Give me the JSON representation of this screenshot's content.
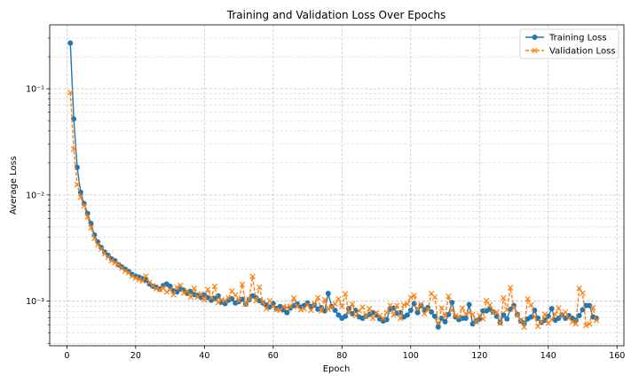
{
  "chart_data": {
    "type": "line",
    "title": "Training and Validation Loss Over Epochs",
    "xlabel": "Epoch",
    "ylabel": "Average Loss",
    "xlim": [
      -5,
      162
    ],
    "ylim": [
      0.00038,
      0.4
    ],
    "yscale": "log",
    "grid": true,
    "legend_position": "top-right",
    "x_ticks": [
      0,
      20,
      40,
      60,
      80,
      100,
      120,
      140,
      160
    ],
    "x_tick_labels": [
      "0",
      "20",
      "40",
      "60",
      "80",
      "100",
      "120",
      "140",
      "160"
    ],
    "y_ticks": [
      0.001,
      0.01,
      0.1
    ],
    "y_tick_labels": [
      "10⁻³",
      "10⁻²",
      "10⁻¹"
    ],
    "series": [
      {
        "name": "Training Loss",
        "color": "#1f77b4",
        "marker": "circle",
        "linestyle": "solid",
        "values": [
          0.27,
          0.052,
          0.0182,
          0.0106,
          0.0083,
          0.0067,
          0.0054,
          0.0042,
          0.0036,
          0.0032,
          0.0029,
          0.0027,
          0.0025,
          0.0024,
          0.0022,
          0.0021,
          0.002,
          0.0019,
          0.00178,
          0.00172,
          0.00168,
          0.00163,
          0.00158,
          0.00145,
          0.00138,
          0.00135,
          0.0013,
          0.0014,
          0.00145,
          0.00138,
          0.00125,
          0.00122,
          0.0013,
          0.00127,
          0.00118,
          0.00123,
          0.00115,
          0.00113,
          0.00108,
          0.00114,
          0.00108,
          0.00102,
          0.00106,
          0.00112,
          0.00098,
          0.00095,
          0.00102,
          0.00105,
          0.00096,
          0.00099,
          0.00104,
          0.00094,
          0.00103,
          0.00112,
          0.00108,
          0.00101,
          0.00096,
          0.00092,
          0.00088,
          0.00095,
          0.00085,
          0.00089,
          0.00083,
          0.00078,
          0.00086,
          0.00091,
          0.00094,
          0.00088,
          0.00091,
          0.00096,
          0.00089,
          0.00092,
          0.00084,
          0.00087,
          0.00081,
          0.00118,
          0.00089,
          0.00082,
          0.00074,
          0.00069,
          0.00072,
          0.00085,
          0.00076,
          0.00082,
          0.00071,
          0.00069,
          0.00072,
          0.00075,
          0.00078,
          0.00074,
          0.00068,
          0.00065,
          0.00067,
          0.00084,
          0.00086,
          0.00077,
          0.00078,
          0.00071,
          0.00074,
          0.00082,
          0.00095,
          0.00078,
          0.00091,
          0.00083,
          0.00087,
          0.00079,
          0.00072,
          0.00057,
          0.00069,
          0.00064,
          0.00075,
          0.00097,
          0.00071,
          0.00067,
          0.00069,
          0.00069,
          0.00093,
          0.00061,
          0.00065,
          0.00068,
          0.00081,
          0.00081,
          0.00084,
          0.00079,
          0.00072,
          0.00063,
          0.00074,
          0.00068,
          0.00084,
          0.00091,
          0.00075,
          0.00065,
          0.00062,
          0.00068,
          0.00071,
          0.00082,
          0.00069,
          0.00063,
          0.00066,
          0.00072,
          0.00085,
          0.00066,
          0.00069,
          0.00074,
          0.00069,
          0.00073,
          0.00069,
          0.00066,
          0.00073,
          0.00083,
          0.00091,
          0.00091,
          0.00071,
          0.00069
        ]
      },
      {
        "name": "Validation Loss",
        "color": "#ff7f0e",
        "marker": "x",
        "linestyle": "dashed",
        "values": [
          0.092,
          0.027,
          0.0125,
          0.0095,
          0.0079,
          0.0062,
          0.0049,
          0.0039,
          0.0034,
          0.0031,
          0.0028,
          0.0026,
          0.0024,
          0.0023,
          0.0022,
          0.00205,
          0.00192,
          0.00185,
          0.00172,
          0.00165,
          0.0016,
          0.00155,
          0.00172,
          0.0015,
          0.0014,
          0.00131,
          0.00128,
          0.00134,
          0.00122,
          0.00128,
          0.00115,
          0.00135,
          0.00141,
          0.00119,
          0.00125,
          0.00109,
          0.00132,
          0.00109,
          0.00117,
          0.00103,
          0.00129,
          0.00108,
          0.00138,
          0.00097,
          0.00103,
          0.00101,
          0.00107,
          0.00124,
          0.00114,
          0.00101,
          0.00144,
          0.00094,
          0.00104,
          0.00171,
          0.00101,
          0.00135,
          0.00098,
          0.00085,
          0.00101,
          0.00089,
          0.00083,
          0.00082,
          0.00089,
          0.00087,
          0.00089,
          0.00107,
          0.00089,
          0.00083,
          0.00085,
          0.00092,
          0.00082,
          0.00095,
          0.00108,
          0.00081,
          0.00103,
          0.00084,
          0.00088,
          0.00094,
          0.00105,
          0.00089,
          0.00117,
          0.00078,
          0.00094,
          0.00073,
          0.00081,
          0.00088,
          0.00072,
          0.00085,
          0.00069,
          0.00078,
          0.00073,
          0.00069,
          0.00078,
          0.00091,
          0.00074,
          0.00091,
          0.00069,
          0.00092,
          0.00094,
          0.00108,
          0.00113,
          0.00085,
          0.00093,
          0.00076,
          0.00083,
          0.00118,
          0.00109,
          0.00062,
          0.00086,
          0.00072,
          0.00111,
          0.00082,
          0.00073,
          0.00071,
          0.00086,
          0.00076,
          0.00078,
          0.00075,
          0.00064,
          0.00073,
          0.00068,
          0.00101,
          0.00092,
          0.00078,
          0.00079,
          0.00062,
          0.00107,
          0.00083,
          0.00134,
          0.00086,
          0.00074,
          0.00066,
          0.00057,
          0.00105,
          0.00092,
          0.00071,
          0.00058,
          0.00064,
          0.00075,
          0.00062,
          0.00067,
          0.00075,
          0.00086,
          0.00073,
          0.00079,
          0.00069,
          0.00064,
          0.00061,
          0.00132,
          0.00119,
          0.00059,
          0.00061,
          0.00087,
          0.00066
        ]
      }
    ]
  }
}
